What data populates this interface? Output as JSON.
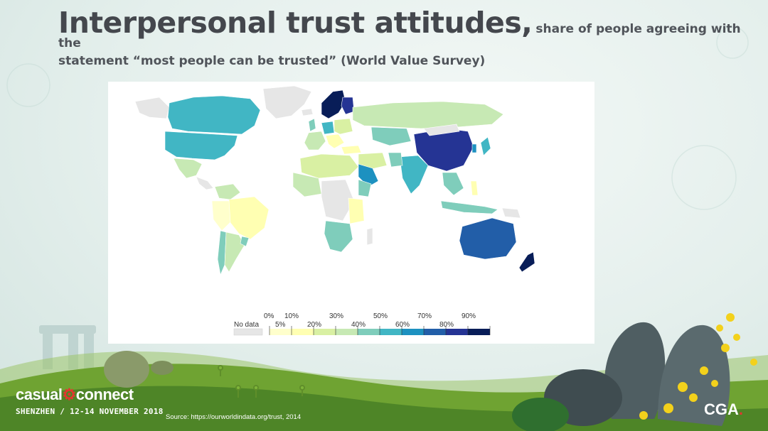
{
  "slide": {
    "title_main": "Interpersonal trust attitudes,",
    "title_sub": "share of people agreeing with the",
    "title_line2": "statement “most people can be trusted” (World Value Survey)",
    "source": "Source: https://ourworldindata.org/trust, 2014"
  },
  "legend": {
    "no_data": "No data",
    "top_ticks": [
      "0%",
      "10%",
      "30%",
      "50%",
      "70%",
      "90%"
    ],
    "bottom_ticks": [
      "5%",
      "20%",
      "40%",
      "60%",
      "80%"
    ],
    "no_data_color": "#e6e6e6",
    "colors": [
      "#ffffcc",
      "#ffffb2",
      "#d9f0a3",
      "#c7e9b4",
      "#7fcdbb",
      "#41b6c4",
      "#1d91c0",
      "#225ea8",
      "#253494",
      "#081d58"
    ]
  },
  "logos": {
    "casual_connect_part1": "casual",
    "casual_connect_part2": "connect",
    "event_line": "SHENZHEN / 12-14 NOVEMBER 2018",
    "cga_text": "CGA",
    "cga_dot": "."
  },
  "colors": {
    "background": "#e4efec",
    "title_text": "#44474d",
    "hill_green": "#6fa332",
    "cga_accent": "#e2372f"
  }
}
